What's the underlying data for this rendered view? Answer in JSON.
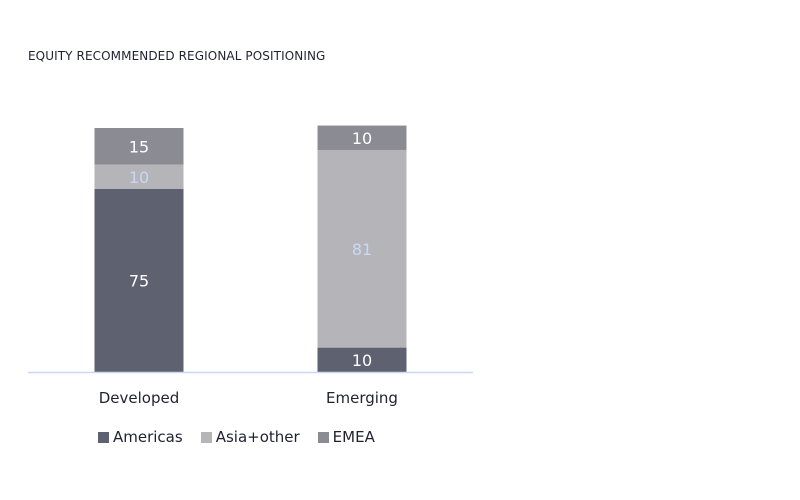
{
  "chart_data": {
    "type": "bar",
    "stacked": true,
    "title": "EQUITY RECOMMENDED REGIONAL POSITIONING",
    "categories": [
      "Developed",
      "Emerging"
    ],
    "series": [
      {
        "name": "Americas",
        "values": [
          75,
          10
        ],
        "color": "#5e6170",
        "label_color": "#ffffff"
      },
      {
        "name": "Asia+other",
        "values": [
          10,
          81
        ],
        "color": "#b5b5b9",
        "label_color": "#c9d8f3"
      },
      {
        "name": "EMEA",
        "values": [
          15,
          10
        ],
        "color": "#8b8c93",
        "label_color": "#ffffff"
      }
    ],
    "ylim": [
      0,
      100
    ],
    "grid": false,
    "legend_position": "bottom",
    "axis_color": "#c9d8f3"
  }
}
